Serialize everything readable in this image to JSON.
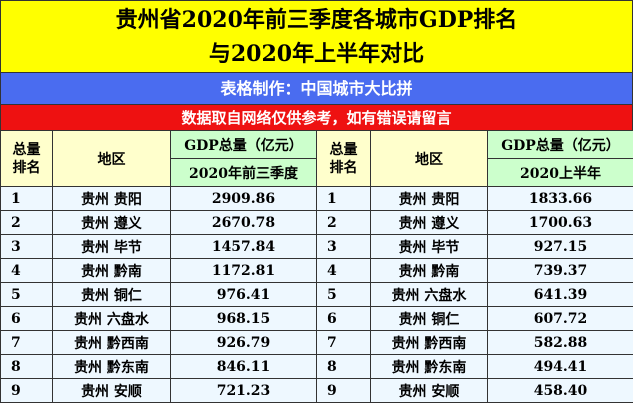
{
  "title": {
    "lines": [
      "贵州省2020年前三季度各城市GDP排名",
      "与2020年上半年对比"
    ]
  },
  "maker": "表格制作：中国城市大比拼",
  "note": "数据取自网络仅供参考，如有错误请留言",
  "table": {
    "header": {
      "left": {
        "rank": [
          "总量",
          "排名"
        ],
        "region": "地区",
        "gdp": "GDP总量（亿元）",
        "period": "2020年前三季度"
      },
      "right": {
        "rank": [
          "总量",
          "排名"
        ],
        "region": "地区",
        "gdp": "GDP总量（亿元）",
        "period": "2020上半年"
      }
    },
    "left_rows": [
      [
        "1",
        "贵州 贵阳",
        "2909.86"
      ],
      [
        "2",
        "贵州 遵义",
        "2670.78"
      ],
      [
        "3",
        "贵州 毕节",
        "1457.84"
      ],
      [
        "4",
        "贵州 黔南",
        "1172.81"
      ],
      [
        "5",
        "贵州 铜仁",
        "976.41"
      ],
      [
        "6",
        "贵州 六盘水",
        "968.15"
      ],
      [
        "7",
        "贵州 黔西南",
        "926.79"
      ],
      [
        "8",
        "贵州 黔东南",
        "846.11"
      ],
      [
        "9",
        "贵州 安顺",
        "721.23"
      ]
    ],
    "right_rows": [
      [
        "1",
        "贵州 贵阳",
        "1833.66"
      ],
      [
        "2",
        "贵州 遵义",
        "1700.63"
      ],
      [
        "3",
        "贵州 毕节",
        "927.15"
      ],
      [
        "4",
        "贵州 黔南",
        "739.37"
      ],
      [
        "5",
        "贵州 六盘水",
        "641.39"
      ],
      [
        "6",
        "贵州 铜仁",
        "607.72"
      ],
      [
        "7",
        "贵州 黔西南",
        "582.88"
      ],
      [
        "8",
        "贵州 黔东南",
        "494.41"
      ],
      [
        "9",
        "贵州 安顺",
        "458.40"
      ]
    ]
  }
}
